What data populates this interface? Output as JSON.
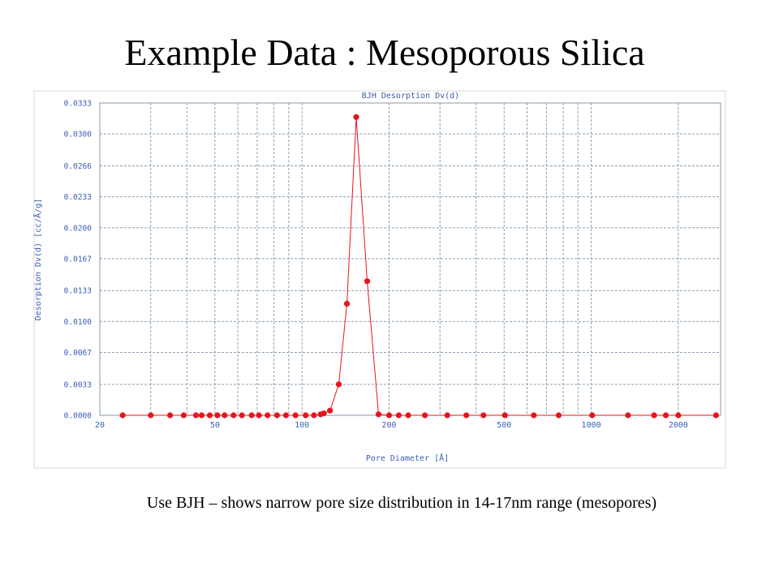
{
  "slide": {
    "title": "Example Data : Mesoporous Silica",
    "caption": "Use BJH – shows narrow pore size distribution in 14-17nm range (mesopores)"
  },
  "chart_data": {
    "type": "scatter",
    "title": "BJH Desorption Dv(d)",
    "xlabel": "Pore Diameter [Å]",
    "ylabel": "Desorption Dv(d) [cc/Å/g]",
    "x_scale": "log",
    "xlim": [
      20,
      2800
    ],
    "ylim": [
      0,
      0.0333
    ],
    "x_tick_labels": [
      "20",
      "50",
      "100",
      "200",
      "500",
      "1000",
      "2000"
    ],
    "y_tick_labels": [
      "0.0000",
      "0.0033",
      "0.0067",
      "0.0100",
      "0.0133",
      "0.0167",
      "0.0200",
      "0.0233",
      "0.0266",
      "0.0300",
      "0.0333"
    ],
    "grid": true,
    "series": [
      {
        "color": "#e8141c",
        "x": [
          24,
          30,
          35,
          39,
          43,
          45,
          48,
          51,
          54,
          58,
          62,
          67,
          71,
          76,
          82,
          88,
          95,
          103,
          110,
          116,
          119,
          125,
          134,
          143,
          154,
          168,
          184,
          200,
          216,
          233,
          266,
          318,
          370,
          424,
          503,
          633,
          772,
          1008,
          1340,
          1650,
          1810,
          2000,
          2700
        ],
        "y": [
          0.0,
          0.0,
          0.0,
          0.0,
          0.0,
          0.0,
          0.0,
          0.0,
          0.0,
          0.0,
          0.0,
          0.0,
          0.0,
          0.0,
          0.0,
          0.0,
          0.0,
          0.0,
          0.0,
          0.0001,
          0.0002,
          0.0005,
          0.0033,
          0.0119,
          0.0318,
          0.0143,
          0.0001,
          0.0,
          0.0,
          0.0,
          0.0,
          0.0,
          0.0,
          0.0,
          0.0,
          0.0,
          0.0,
          0.0,
          0.0,
          0.0,
          0.0,
          0.0,
          0.0
        ]
      }
    ]
  }
}
